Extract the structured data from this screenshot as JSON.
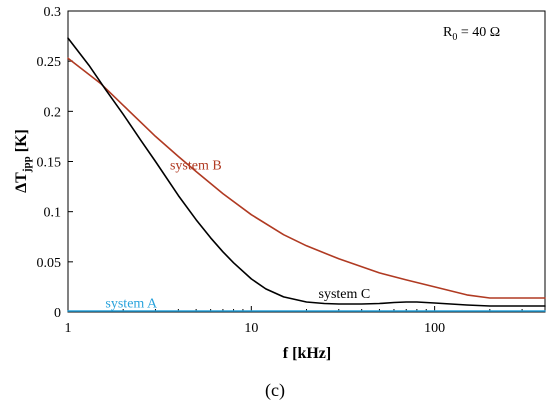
{
  "chart_data": {
    "type": "line",
    "x_scale": "log",
    "xlim": [
      1,
      400
    ],
    "ylim": [
      0,
      0.3
    ],
    "x_ticks": [
      1,
      10,
      100
    ],
    "x_tick_labels": [
      "1",
      "10",
      "100"
    ],
    "y_ticks": [
      0,
      0.05,
      0.1,
      0.15,
      0.2,
      0.25,
      0.3
    ],
    "y_tick_labels": [
      "0",
      "0.05",
      "0.1",
      "0.15",
      "0.2",
      "0.25",
      "0.3"
    ],
    "xlabel": "f [kHz]",
    "ylabel_main": "ΔT",
    "ylabel_sub": "jpp",
    "ylabel_unit": " [K]",
    "grid": false,
    "annotation": {
      "prefix": "R",
      "subscript": "0",
      "suffix": " = 40 Ω"
    },
    "caption": "(c)",
    "series": [
      {
        "label": "system A",
        "color": "#29a3dc",
        "x": [
          1,
          2,
          5,
          10,
          20,
          50,
          100,
          200,
          400
        ],
        "y": [
          0.001,
          0.001,
          0.001,
          0.001,
          0.001,
          0.001,
          0.001,
          0.001,
          0.001
        ]
      },
      {
        "label": "system B",
        "color": "#b03a22",
        "x": [
          1,
          1.5,
          2,
          3,
          4,
          5,
          7,
          10,
          15,
          20,
          30,
          50,
          70,
          100,
          150,
          200,
          300,
          400
        ],
        "y": [
          0.253,
          0.228,
          0.206,
          0.175,
          0.155,
          0.14,
          0.118,
          0.097,
          0.077,
          0.066,
          0.053,
          0.039,
          0.032,
          0.025,
          0.017,
          0.014,
          0.014,
          0.014
        ]
      },
      {
        "label": "system C",
        "color": "#000000",
        "x": [
          1,
          1.3,
          1.6,
          2,
          2.5,
          3,
          4,
          5,
          6,
          7,
          8,
          10,
          12,
          15,
          20,
          25,
          30,
          40,
          50,
          60,
          70,
          80,
          100,
          150,
          200,
          300,
          400
        ],
        "y": [
          0.273,
          0.246,
          0.222,
          0.197,
          0.171,
          0.15,
          0.116,
          0.092,
          0.074,
          0.06,
          0.049,
          0.033,
          0.023,
          0.015,
          0.01,
          0.0085,
          0.008,
          0.008,
          0.0085,
          0.0095,
          0.01,
          0.01,
          0.009,
          0.007,
          0.006,
          0.006,
          0.006
        ]
      }
    ]
  }
}
